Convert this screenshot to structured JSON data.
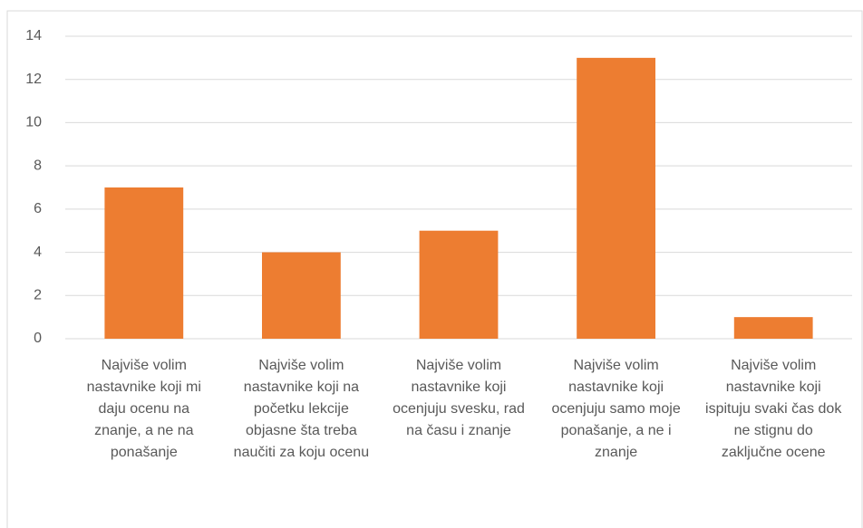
{
  "chart_data": {
    "type": "bar",
    "categories": [
      "Najviše volim nastavnike koji mi daju ocenu na znanje, a ne na ponašanje",
      "Najviše volim nastavnike koji na početku lekcije objasne šta treba naučiti za koju ocenu",
      "Najviše volim nastavnike koji ocenjuju svesku, rad na času i znanje",
      "Najviše volim nastavnike koji ocenjuju samo moje ponašanje, a ne i znanje",
      "Najviše volim nastavnike koji ispituju svaki čas dok ne stignu do zaključne ocene"
    ],
    "values": [
      7,
      4,
      5,
      13,
      1
    ],
    "color": "#ed7d31",
    "ylim": [
      0,
      14
    ],
    "yticks": [
      0,
      2,
      4,
      6,
      8,
      10,
      12,
      14
    ],
    "grid": true
  }
}
